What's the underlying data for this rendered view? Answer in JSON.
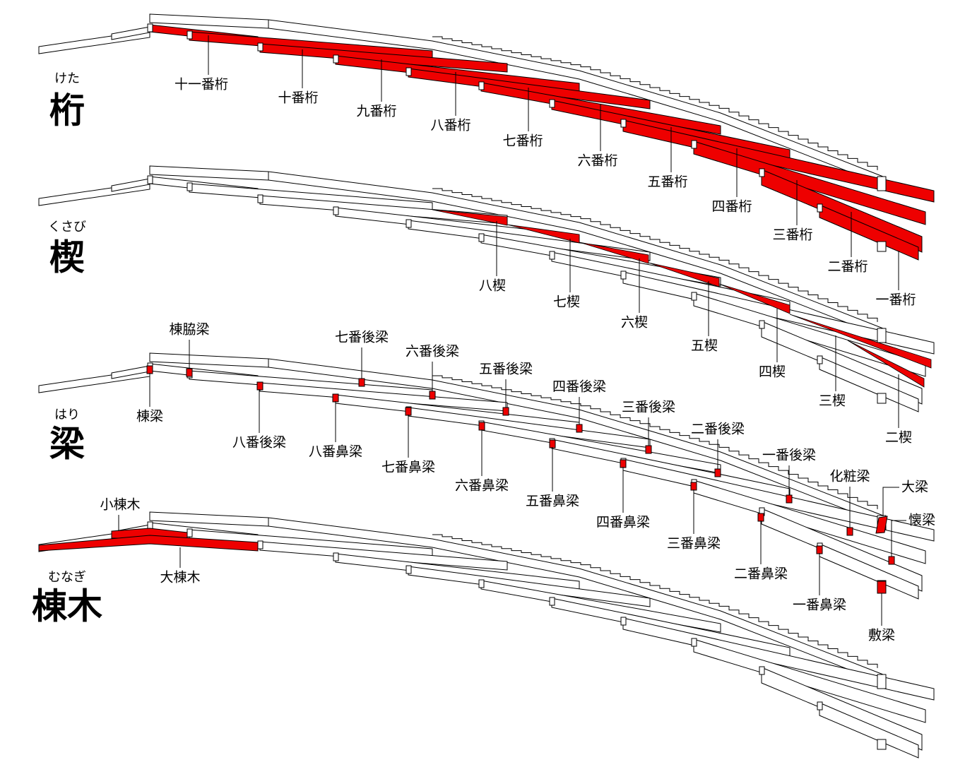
{
  "panels": [
    {
      "ruby": "けた",
      "title": "桁",
      "labels": [
        "十一番桁",
        "十番桁",
        "九番桁",
        "八番桁",
        "七番桁",
        "六番桁",
        "五番桁",
        "四番桁",
        "三番桁",
        "二番桁",
        "一番桁"
      ]
    },
    {
      "ruby": "くさび",
      "title": "楔",
      "labels": [
        "八楔",
        "七楔",
        "六楔",
        "五楔",
        "四楔",
        "三楔",
        "二楔"
      ]
    },
    {
      "ruby": "はり",
      "title": "梁",
      "labels": [
        "棟梁",
        "棟脇梁",
        "八番後梁",
        "八番鼻梁",
        "七番後梁",
        "七番鼻梁",
        "六番後梁",
        "六番鼻梁",
        "五番後梁",
        "五番鼻梁",
        "四番後梁",
        "四番鼻梁",
        "三番後梁",
        "三番鼻梁",
        "二番後梁",
        "二番鼻梁",
        "一番後梁",
        "一番鼻梁",
        "化粧梁",
        "大梁",
        "懐梁",
        "敷梁"
      ]
    },
    {
      "ruby": "むなぎ",
      "title": "棟木",
      "labels": [
        "小棟木",
        "大棟木"
      ]
    }
  ]
}
